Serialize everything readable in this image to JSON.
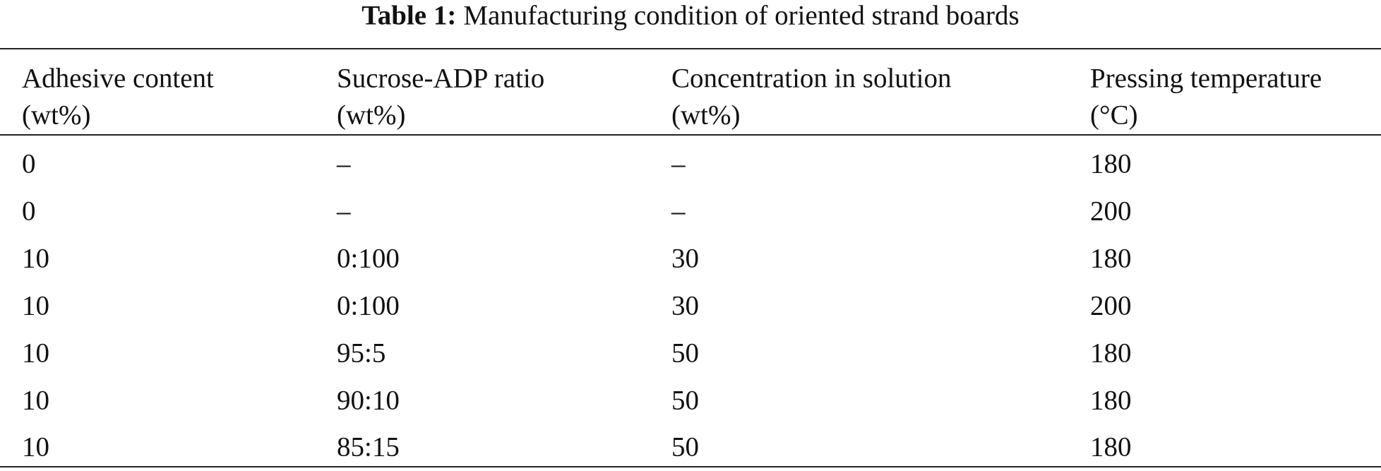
{
  "caption": {
    "label": "Table 1:",
    "title": "Manufacturing condition of oriented strand boards"
  },
  "table": {
    "header": [
      {
        "name": "Adhesive content",
        "unit": "(wt%)"
      },
      {
        "name": "Sucrose-ADP ratio",
        "unit": "(wt%)"
      },
      {
        "name": "Concentration in solution",
        "unit": "(wt%)"
      },
      {
        "name": "Pressing temperature",
        "unit": "(°C)"
      }
    ],
    "rows": [
      [
        0,
        "–",
        "–",
        180
      ],
      [
        0,
        "–",
        "–",
        200
      ],
      [
        10,
        "0:100",
        30,
        180
      ],
      [
        10,
        "0:100",
        30,
        200
      ],
      [
        10,
        "95:5",
        50,
        180
      ],
      [
        10,
        "90:10",
        50,
        180
      ],
      [
        10,
        "85:15",
        50,
        180
      ]
    ]
  }
}
